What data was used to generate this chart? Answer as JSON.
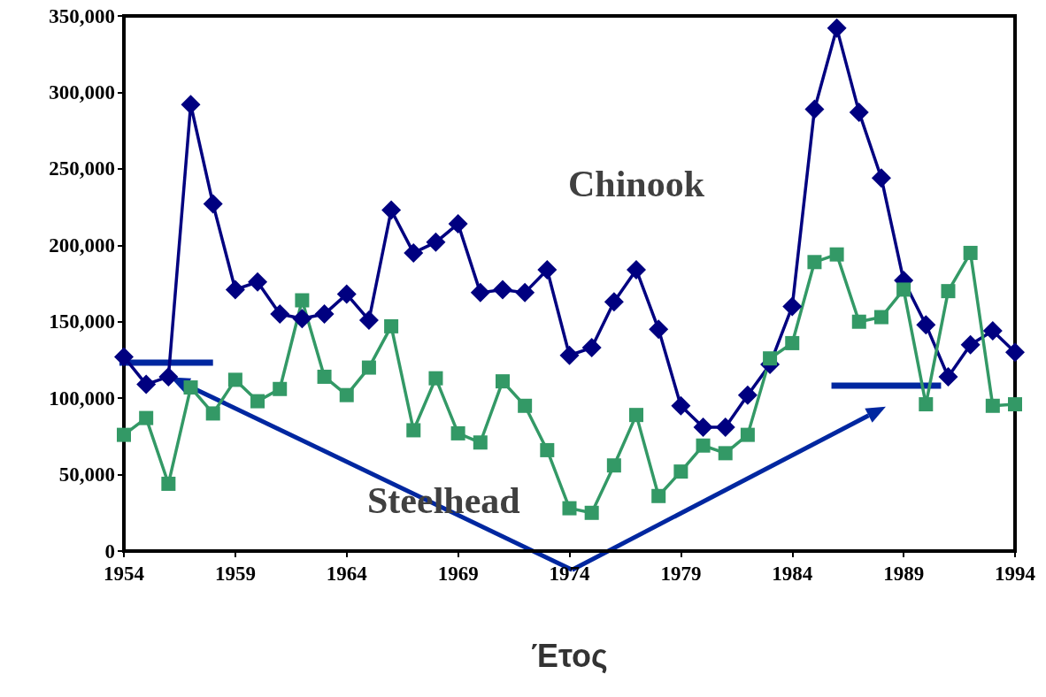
{
  "chart_data": {
    "type": "line",
    "xlabel": "Έτος",
    "x": [
      1954,
      1955,
      1956,
      1957,
      1958,
      1959,
      1960,
      1961,
      1962,
      1963,
      1964,
      1965,
      1966,
      1967,
      1968,
      1969,
      1970,
      1971,
      1972,
      1973,
      1974,
      1975,
      1976,
      1977,
      1978,
      1979,
      1980,
      1981,
      1982,
      1983,
      1984,
      1985,
      1986,
      1987,
      1988,
      1989,
      1990,
      1991,
      1992,
      1993,
      1994
    ],
    "series": [
      {
        "name": "Chinook",
        "color": "#000080",
        "marker": "diamond",
        "values": [
          127000,
          109000,
          114000,
          292000,
          227000,
          171000,
          176000,
          155000,
          152000,
          155000,
          168000,
          151000,
          223000,
          195000,
          202000,
          214000,
          169000,
          171000,
          169000,
          184000,
          128000,
          133000,
          163000,
          184000,
          145000,
          95000,
          81000,
          81000,
          102000,
          122000,
          160000,
          289000,
          342000,
          287000,
          244000,
          177000,
          148000,
          114000,
          135000,
          144000,
          130000
        ]
      },
      {
        "name": "Steelhead",
        "color": "#339966",
        "marker": "square",
        "values": [
          76000,
          87000,
          44000,
          107000,
          90000,
          112000,
          98000,
          106000,
          164000,
          114000,
          102000,
          120000,
          147000,
          79000,
          113000,
          77000,
          71000,
          111000,
          95000,
          66000,
          28000,
          25000,
          56000,
          89000,
          36000,
          52000,
          69000,
          64000,
          76000,
          126000,
          136000,
          189000,
          194000,
          150000,
          153000,
          171000,
          96000,
          170000,
          195000,
          95000,
          96000
        ]
      }
    ],
    "xlim": [
      1954,
      1994
    ],
    "xticks": [
      1954,
      1959,
      1964,
      1969,
      1974,
      1979,
      1984,
      1989,
      1994
    ],
    "ylim": [
      0,
      350000
    ],
    "yticks": [
      0,
      {
        "value": 50000,
        "label": "50,000"
      },
      {
        "value": 100000,
        "label": "100,000"
      },
      {
        "value": 150000,
        "label": "150,000"
      },
      {
        "value": 200000,
        "label": "200,000"
      },
      {
        "value": 250000,
        "label": "250,000"
      },
      {
        "value": 300000,
        "label": "300,000"
      },
      {
        "value": 350000,
        "label": "350,000"
      }
    ],
    "grid": false,
    "legend": false
  }
}
